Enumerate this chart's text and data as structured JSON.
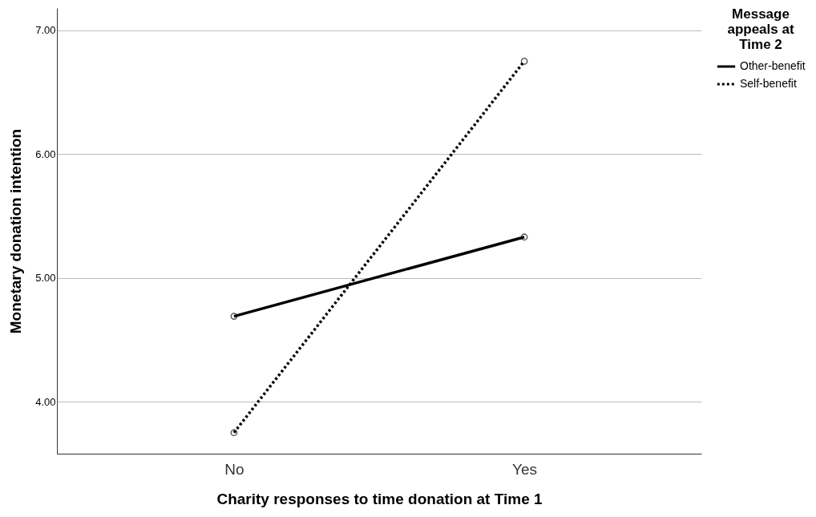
{
  "chart_data": {
    "type": "line",
    "xlabel": "Charity responses to time donation at Time 1",
    "ylabel": "Monetary donation intention",
    "legend_title": "Message appeals at Time 2",
    "categories": [
      "No",
      "Yes"
    ],
    "series": [
      {
        "name": "Other-benefit",
        "color": "#000000",
        "line_style": "solid",
        "values": [
          4.69,
          5.33
        ]
      },
      {
        "name": "Self-benefit",
        "color": "#000000",
        "line_style": "dotted",
        "values": [
          3.75,
          6.75
        ]
      }
    ],
    "ylim": [
      3.58,
      7.18
    ],
    "yticks": [
      {
        "value": 4,
        "label": "4.00"
      },
      {
        "value": 5,
        "label": "5.00"
      },
      {
        "value": 6,
        "label": "6.00"
      },
      {
        "value": 7,
        "label": "7.00"
      }
    ],
    "grid": "y",
    "legend": "top right",
    "marker": "circle"
  }
}
